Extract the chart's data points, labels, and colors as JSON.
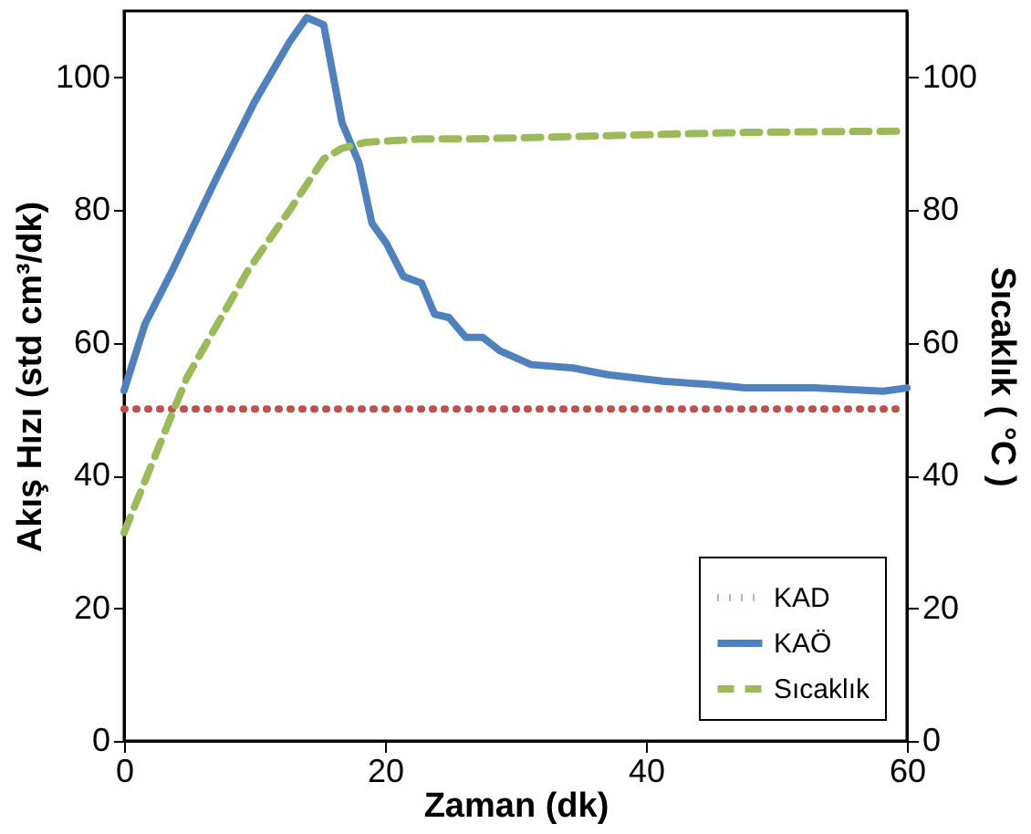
{
  "chart_data": {
    "type": "line",
    "xlabel": "Zaman (dk)",
    "ylabel": "Akış Hızı (std cm³/dk)",
    "y2label": "Sıcaklık ( °C )",
    "xlim": [
      0,
      60
    ],
    "xticks": [
      0,
      20,
      40,
      60
    ],
    "ylim": [
      0,
      110
    ],
    "yticks": [
      0,
      20,
      40,
      60,
      80,
      100
    ],
    "y2lim": [
      0,
      110
    ],
    "y2ticks": [
      0,
      20,
      40,
      60,
      80,
      100
    ],
    "grid": false,
    "legend": "bottom right",
    "marker": "none",
    "series": [
      {
        "name": "KAD",
        "color": "#c0504d",
        "line_style": "dotted",
        "x": [
          0,
          60
        ],
        "values": [
          50,
          50
        ]
      },
      {
        "name": "KAÖ",
        "color": "#4f81bd",
        "line_style": "solid",
        "x": [
          0,
          1.6,
          3.7,
          6.9,
          10,
          12.7,
          14,
          15.3,
          16.7,
          18,
          19,
          20.1,
          21.4,
          22.8,
          23.8,
          24.9,
          26.2,
          27.5,
          28.8,
          31.2,
          34.4,
          37,
          41.3,
          45,
          47.6,
          52.9,
          58.2,
          60
        ],
        "values": [
          52.8,
          62.8,
          70.9,
          84.1,
          96.3,
          105.4,
          109,
          107.9,
          93.2,
          87.1,
          78,
          75,
          70,
          69,
          64.3,
          63.8,
          60.8,
          60.8,
          58.8,
          56.7,
          56.2,
          55.2,
          54.2,
          53.7,
          53.2,
          53.2,
          52.7,
          53.2
        ]
      },
      {
        "name": "Sıcaklık",
        "color": "#9bbb59",
        "line_style": "dashed",
        "axis": "y2",
        "x": [
          0,
          4.8,
          9.5,
          12.7,
          15.3,
          16.7,
          18.5,
          22.7,
          26.4,
          37,
          47.6,
          60
        ],
        "values": [
          31.4,
          54.7,
          70.9,
          80,
          87.7,
          89.3,
          90.2,
          90.7,
          90.7,
          91.2,
          91.7,
          91.9
        ]
      }
    ]
  }
}
